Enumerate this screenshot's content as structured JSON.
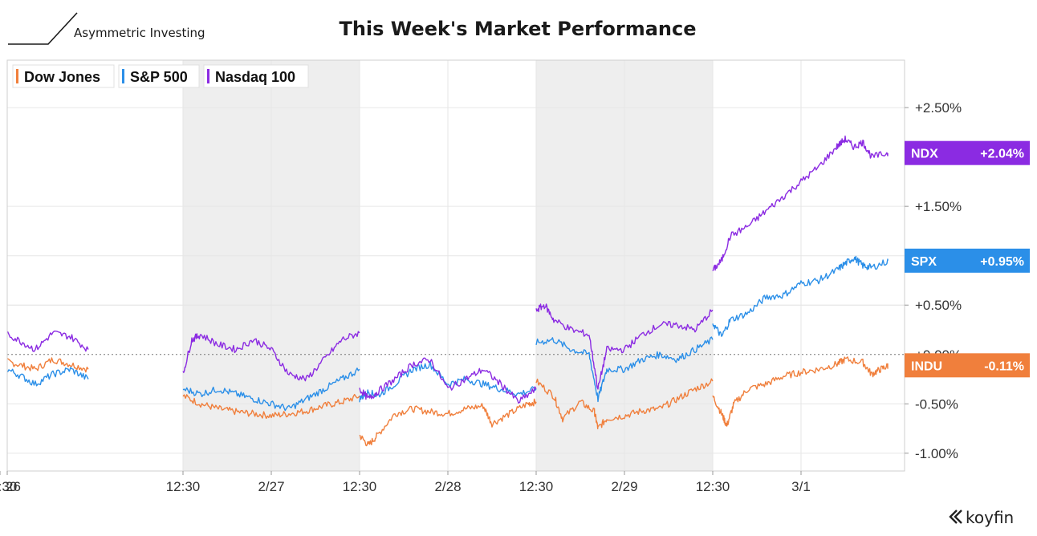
{
  "brand": {
    "name": "Asymmetric Investing"
  },
  "footer": {
    "watermark": "koyfin"
  },
  "colors": {
    "dow": "#f07f3c",
    "spx": "#2b8fe8",
    "ndx": "#8b2be2",
    "shade": "#eeeeee",
    "grid": "#e6e6e6",
    "zero": "#777777"
  },
  "chart_data": {
    "type": "line",
    "title": "This Week's Market Performance",
    "y_tick_labels": [
      "+2.50%",
      "+1.50%",
      "+0.50%",
      "+0.00%",
      "-0.50%",
      "-1.00%"
    ],
    "y_tick_values": [
      2.5,
      1.5,
      0.5,
      0.0,
      -0.5,
      -1.0
    ],
    "ylim": [
      -1.18,
      2.98
    ],
    "x_tick_labels": [
      "26",
      "12:30",
      "2/27",
      "12:30",
      "2/28",
      "12:30",
      "2/29",
      "12:30",
      "3/1",
      "12:30"
    ],
    "sessions": [
      "2/26",
      "2/27",
      "2/28",
      "2/29",
      "3/1"
    ],
    "shaded_sessions": [
      "2/27",
      "2/29"
    ],
    "legend": {
      "placement": "top-left",
      "items": [
        "Dow Jones",
        "S&P 500",
        "Nasdaq 100"
      ]
    },
    "series": [
      {
        "name": "Dow Jones",
        "symbol": "INDU",
        "last_label": "-0.11%",
        "last_value": -0.11,
        "sessions": [
          [
            [
              0,
              0.23
            ],
            [
              0.1,
              0.15
            ],
            [
              0.2,
              0.08
            ],
            [
              0.3,
              0.03
            ],
            [
              0.4,
              0.0
            ],
            [
              0.5,
              -0.05
            ],
            [
              0.6,
              -0.1
            ],
            [
              0.7,
              -0.15
            ],
            [
              0.8,
              -0.05
            ],
            [
              0.9,
              -0.1
            ],
            [
              1,
              -0.15
            ]
          ],
          [
            [
              0,
              -0.42
            ],
            [
              0.1,
              -0.5
            ],
            [
              0.2,
              -0.55
            ],
            [
              0.3,
              -0.58
            ],
            [
              0.4,
              -0.6
            ],
            [
              0.5,
              -0.62
            ],
            [
              0.6,
              -0.6
            ],
            [
              0.7,
              -0.57
            ],
            [
              0.8,
              -0.52
            ],
            [
              0.9,
              -0.48
            ],
            [
              1,
              -0.42
            ]
          ],
          [
            [
              0,
              -0.82
            ],
            [
              0.05,
              -0.92
            ],
            [
              0.1,
              -0.82
            ],
            [
              0.2,
              -0.6
            ],
            [
              0.3,
              -0.55
            ],
            [
              0.4,
              -0.58
            ],
            [
              0.5,
              -0.6
            ],
            [
              0.6,
              -0.55
            ],
            [
              0.7,
              -0.52
            ],
            [
              0.75,
              -0.7
            ],
            [
              0.85,
              -0.6
            ],
            [
              0.95,
              -0.5
            ],
            [
              1,
              -0.48
            ]
          ],
          [
            [
              0,
              -0.27
            ],
            [
              0.1,
              -0.42
            ],
            [
              0.15,
              -0.65
            ],
            [
              0.25,
              -0.48
            ],
            [
              0.33,
              -0.58
            ],
            [
              0.35,
              -0.75
            ],
            [
              0.4,
              -0.65
            ],
            [
              0.5,
              -0.62
            ],
            [
              0.6,
              -0.57
            ],
            [
              0.7,
              -0.55
            ],
            [
              0.8,
              -0.45
            ],
            [
              0.9,
              -0.35
            ],
            [
              1,
              -0.27
            ]
          ],
          [
            [
              0,
              -0.42
            ],
            [
              0.05,
              -0.6
            ],
            [
              0.08,
              -0.72
            ],
            [
              0.12,
              -0.5
            ],
            [
              0.2,
              -0.35
            ],
            [
              0.3,
              -0.3
            ],
            [
              0.4,
              -0.22
            ],
            [
              0.5,
              -0.18
            ],
            [
              0.6,
              -0.15
            ],
            [
              0.7,
              -0.1
            ],
            [
              0.75,
              -0.05
            ],
            [
              0.85,
              -0.08
            ],
            [
              0.9,
              -0.2
            ],
            [
              0.95,
              -0.15
            ],
            [
              1,
              -0.11
            ]
          ]
        ]
      },
      {
        "name": "S&P 500",
        "symbol": "SPX",
        "last_label": "+0.95%",
        "last_value": 0.95,
        "sessions": [
          [
            [
              0,
              0.18
            ],
            [
              0.1,
              0.05
            ],
            [
              0.2,
              -0.05
            ],
            [
              0.3,
              0.0
            ],
            [
              0.4,
              -0.05
            ],
            [
              0.5,
              -0.12
            ],
            [
              0.6,
              -0.2
            ],
            [
              0.7,
              -0.3
            ],
            [
              0.8,
              -0.2
            ],
            [
              0.9,
              -0.15
            ],
            [
              1,
              -0.25
            ]
          ],
          [
            [
              0,
              -0.35
            ],
            [
              0.1,
              -0.4
            ],
            [
              0.2,
              -0.35
            ],
            [
              0.3,
              -0.4
            ],
            [
              0.4,
              -0.45
            ],
            [
              0.5,
              -0.5
            ],
            [
              0.6,
              -0.55
            ],
            [
              0.7,
              -0.45
            ],
            [
              0.8,
              -0.35
            ],
            [
              0.9,
              -0.25
            ],
            [
              1,
              -0.15
            ]
          ],
          [
            [
              0,
              -0.45
            ],
            [
              0.05,
              -0.38
            ],
            [
              0.1,
              -0.42
            ],
            [
              0.2,
              -0.3
            ],
            [
              0.3,
              -0.15
            ],
            [
              0.4,
              -0.1
            ],
            [
              0.5,
              -0.3
            ],
            [
              0.6,
              -0.25
            ],
            [
              0.7,
              -0.3
            ],
            [
              0.8,
              -0.35
            ],
            [
              0.9,
              -0.4
            ],
            [
              1,
              -0.35
            ]
          ],
          [
            [
              0,
              0.12
            ],
            [
              0.1,
              0.15
            ],
            [
              0.2,
              0.05
            ],
            [
              0.3,
              0.0
            ],
            [
              0.35,
              -0.45
            ],
            [
              0.4,
              -0.15
            ],
            [
              0.5,
              -0.15
            ],
            [
              0.6,
              -0.05
            ],
            [
              0.7,
              0.0
            ],
            [
              0.8,
              -0.05
            ],
            [
              0.9,
              0.05
            ],
            [
              1,
              0.15
            ]
          ],
          [
            [
              0,
              0.32
            ],
            [
              0.05,
              0.18
            ],
            [
              0.1,
              0.35
            ],
            [
              0.2,
              0.42
            ],
            [
              0.3,
              0.58
            ],
            [
              0.4,
              0.6
            ],
            [
              0.5,
              0.72
            ],
            [
              0.6,
              0.75
            ],
            [
              0.7,
              0.85
            ],
            [
              0.75,
              0.92
            ],
            [
              0.8,
              0.98
            ],
            [
              0.85,
              0.9
            ],
            [
              0.9,
              0.88
            ],
            [
              1,
              0.95
            ]
          ]
        ]
      },
      {
        "name": "Nasdaq 100",
        "symbol": "NDX",
        "last_label": "+2.04%",
        "last_value": 2.04,
        "sessions": [
          [
            [
              0,
              0.1
            ],
            [
              0.1,
              0.22
            ],
            [
              0.2,
              0.15
            ],
            [
              0.3,
              0.28
            ],
            [
              0.4,
              0.32
            ],
            [
              0.5,
              0.25
            ],
            [
              0.6,
              0.15
            ],
            [
              0.7,
              0.05
            ],
            [
              0.8,
              0.22
            ],
            [
              0.9,
              0.18
            ],
            [
              1,
              0.05
            ]
          ],
          [
            [
              0,
              -0.2
            ],
            [
              0.05,
              0.15
            ],
            [
              0.1,
              0.2
            ],
            [
              0.2,
              0.1
            ],
            [
              0.3,
              0.05
            ],
            [
              0.4,
              0.15
            ],
            [
              0.5,
              0.05
            ],
            [
              0.6,
              -0.2
            ],
            [
              0.7,
              -0.25
            ],
            [
              0.8,
              -0.05
            ],
            [
              0.9,
              0.15
            ],
            [
              1,
              0.22
            ]
          ],
          [
            [
              0,
              -0.35
            ],
            [
              0.05,
              -0.45
            ],
            [
              0.1,
              -0.38
            ],
            [
              0.2,
              -0.25
            ],
            [
              0.3,
              -0.1
            ],
            [
              0.4,
              -0.05
            ],
            [
              0.5,
              -0.35
            ],
            [
              0.6,
              -0.25
            ],
            [
              0.7,
              -0.15
            ],
            [
              0.8,
              -0.3
            ],
            [
              0.9,
              -0.48
            ],
            [
              1,
              -0.35
            ]
          ],
          [
            [
              0,
              0.45
            ],
            [
              0.05,
              0.5
            ],
            [
              0.1,
              0.35
            ],
            [
              0.2,
              0.25
            ],
            [
              0.3,
              0.2
            ],
            [
              0.35,
              -0.35
            ],
            [
              0.4,
              0.05
            ],
            [
              0.5,
              0.05
            ],
            [
              0.6,
              0.2
            ],
            [
              0.7,
              0.3
            ],
            [
              0.8,
              0.3
            ],
            [
              0.9,
              0.25
            ],
            [
              1,
              0.45
            ]
          ],
          [
            [
              0,
              0.85
            ],
            [
              0.05,
              0.95
            ],
            [
              0.1,
              1.2
            ],
            [
              0.2,
              1.3
            ],
            [
              0.3,
              1.45
            ],
            [
              0.4,
              1.6
            ],
            [
              0.5,
              1.75
            ],
            [
              0.6,
              1.9
            ],
            [
              0.7,
              2.1
            ],
            [
              0.75,
              2.18
            ],
            [
              0.8,
              2.1
            ],
            [
              0.85,
              2.15
            ],
            [
              0.9,
              2.0
            ],
            [
              1,
              2.04
            ]
          ]
        ]
      }
    ]
  }
}
